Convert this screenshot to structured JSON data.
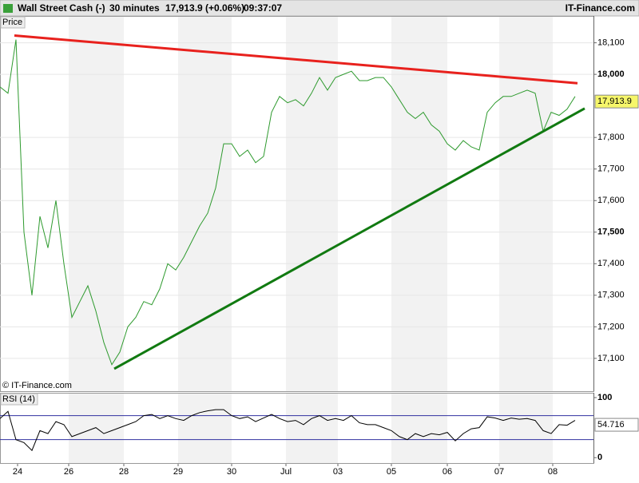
{
  "header": {
    "symbol": "Wall Street Cash (-)",
    "period": "30 minutes",
    "quote": "17,913.9 (+0.06%)",
    "time": "09:37:07",
    "brand": "IT-Finance.com"
  },
  "chart_data": [
    {
      "type": "line",
      "label": "Price",
      "credit": "© IT-Finance.com",
      "x": [
        0,
        2,
        4,
        6,
        8,
        10,
        12,
        14,
        16,
        18,
        20,
        22,
        24,
        26,
        28,
        30,
        32,
        34,
        36,
        38,
        40,
        42,
        44,
        46,
        48,
        50,
        52,
        54,
        56,
        58,
        60,
        62,
        64,
        66,
        68,
        70,
        72,
        74,
        76,
        78,
        80,
        82,
        84,
        86,
        88,
        90,
        92,
        94,
        96,
        98,
        100,
        102,
        104,
        106,
        108,
        110,
        112,
        114,
        116,
        118,
        120,
        122,
        124,
        126,
        128,
        130,
        132,
        134,
        136,
        138,
        140,
        142,
        144
      ],
      "series": [
        {
          "color": "#2e9a2e",
          "values": [
            17960,
            17940,
            18110,
            17500,
            17300,
            17550,
            17450,
            17600,
            17400,
            17230,
            17280,
            17330,
            17250,
            17150,
            17080,
            17120,
            17200,
            17230,
            17280,
            17270,
            17320,
            17400,
            17380,
            17420,
            17470,
            17520,
            17560,
            17640,
            17780,
            17780,
            17740,
            17760,
            17720,
            17740,
            17880,
            17930,
            17910,
            17920,
            17900,
            17940,
            17990,
            17950,
            17990,
            18000,
            18010,
            17980,
            17980,
            17990,
            17990,
            17960,
            17920,
            17880,
            17860,
            17880,
            17840,
            17820,
            17780,
            17760,
            17790,
            17770,
            17760,
            17880,
            17910,
            17930,
            17930,
            17940,
            17950,
            17940,
            17820,
            17880,
            17870,
            17890,
            17930
          ]
        }
      ],
      "lines": [
        {
          "color": "#e8211d",
          "x": [
            3.6,
            144.6
          ],
          "values": [
            18123,
            17972
          ]
        },
        {
          "color": "#117a11",
          "x": [
            28.6,
            146.4
          ],
          "values": [
            17067,
            17892
          ]
        }
      ],
      "last_label": {
        "value": 17913.9,
        "label": "17,913.9"
      },
      "xlim": [
        0,
        148.6
      ],
      "ylim": [
        16996,
        18185
      ],
      "yticks": [
        {
          "value": 17100,
          "label": "17,100"
        },
        {
          "value": 17200,
          "label": "17,200"
        },
        {
          "value": 17300,
          "label": "17,300"
        },
        {
          "value": 17400,
          "label": "17,400"
        },
        {
          "value": 17500,
          "label": "17,500"
        },
        {
          "value": 17600,
          "label": "17,600"
        },
        {
          "value": 17700,
          "label": "17,700"
        },
        {
          "value": 17800,
          "label": "17,800"
        },
        {
          "value": 18000,
          "label": "18,000"
        },
        {
          "value": 18100,
          "label": "18,100"
        }
      ],
      "xticks": [
        {
          "value": 4.4,
          "label": "24"
        },
        {
          "value": 17.2,
          "label": "26"
        },
        {
          "value": 31,
          "label": "28"
        },
        {
          "value": 44.6,
          "label": "29"
        },
        {
          "value": 58,
          "label": "30"
        },
        {
          "value": 71.6,
          "label": "Jul"
        },
        {
          "value": 84.6,
          "label": "03"
        },
        {
          "value": 98,
          "label": "05"
        },
        {
          "value": 112,
          "label": "06"
        },
        {
          "value": 125,
          "label": "07"
        },
        {
          "value": 138.4,
          "label": "08"
        }
      ],
      "grid": true
    },
    {
      "type": "line",
      "label": "RSI (14)",
      "x": [
        0,
        2,
        4,
        6,
        8,
        10,
        12,
        14,
        16,
        18,
        20,
        22,
        24,
        26,
        28,
        30,
        32,
        34,
        36,
        38,
        40,
        42,
        44,
        46,
        48,
        50,
        52,
        54,
        56,
        58,
        60,
        62,
        64,
        66,
        68,
        70,
        72,
        74,
        76,
        78,
        80,
        82,
        84,
        86,
        88,
        90,
        92,
        94,
        96,
        98,
        100,
        102,
        104,
        106,
        108,
        110,
        112,
        114,
        116,
        118,
        120,
        122,
        124,
        126,
        128,
        130,
        132,
        134,
        136,
        138,
        140,
        142,
        144
      ],
      "series": [
        {
          "color": "#000000",
          "values": [
            65,
            77,
            30,
            25,
            12,
            45,
            40,
            60,
            55,
            35,
            40,
            45,
            50,
            40,
            45,
            50,
            55,
            60,
            70,
            72,
            65,
            70,
            65,
            62,
            70,
            75,
            78,
            80,
            80,
            70,
            65,
            68,
            60,
            66,
            72,
            65,
            60,
            62,
            55,
            65,
            70,
            62,
            65,
            62,
            70,
            58,
            55,
            55,
            50,
            45,
            35,
            30,
            40,
            35,
            40,
            38,
            42,
            28,
            40,
            48,
            50,
            68,
            66,
            62,
            66,
            64,
            65,
            62,
            45,
            40,
            55,
            54,
            62
          ]
        }
      ],
      "levels": [
        30,
        70
      ],
      "last_label": {
        "value": 54.716,
        "label": "54.716"
      },
      "xlim": [
        0,
        148.6
      ],
      "ylim": [
        -9,
        108
      ],
      "yticks": [
        0,
        100
      ]
    }
  ]
}
